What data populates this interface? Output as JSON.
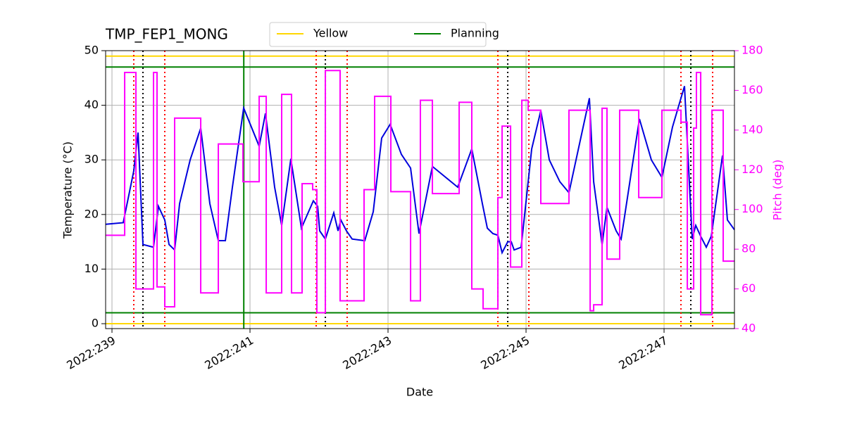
{
  "chart_data": {
    "type": "line",
    "title": "TMP_FEP1_MONG",
    "xlabel": "Date",
    "ylabel": "Temperature (°C)",
    "y2label": "Pitch (deg)",
    "xlim": [
      238.908,
      248.02
    ],
    "ylim": [
      -0.9,
      50
    ],
    "y2lim": [
      40,
      180
    ],
    "xticks": [
      {
        "value": 239,
        "label": "2022:239"
      },
      {
        "value": 241,
        "label": "2022:241"
      },
      {
        "value": 243,
        "label": "2022:243"
      },
      {
        "value": 245,
        "label": "2022:245"
      },
      {
        "value": 247,
        "label": "2022:247"
      }
    ],
    "yticks": [
      0,
      10,
      20,
      30,
      40,
      50
    ],
    "y2ticks": [
      40,
      60,
      80,
      100,
      120,
      140,
      160,
      180
    ],
    "grid": true,
    "legend": "top",
    "series": [
      {
        "color": "#0000dd",
        "x": [
          238.908,
          239.163,
          239.316,
          239.378,
          239.449,
          239.602,
          239.673,
          239.765,
          239.827,
          239.908,
          239.98,
          240.133,
          240.286,
          240.418,
          240.541,
          240.643,
          240.745,
          240.908,
          241.133,
          241.224,
          241.357,
          241.459,
          241.592,
          241.745,
          241.918,
          241.98,
          242.01,
          242.092,
          242.214,
          242.276,
          242.316,
          242.398,
          242.48,
          242.663,
          242.786,
          242.908,
          243.031,
          243.194,
          243.327,
          243.449,
          243.643,
          244.01,
          244.214,
          244.367,
          244.439,
          244.52,
          244.592,
          244.653,
          244.735,
          244.786,
          244.827,
          244.929,
          245.082,
          245.214,
          245.337,
          245.49,
          245.622,
          245.918,
          245.98,
          246.102,
          246.173,
          246.306,
          246.378,
          246.643,
          246.816,
          246.969,
          247.122,
          247.296,
          247.408,
          247.459,
          247.531,
          247.612,
          247.684,
          247.847,
          247.918,
          248.02
        ],
        "values": [
          18.2,
          18.5,
          28,
          35,
          14.5,
          14,
          21.5,
          19,
          14.5,
          13.5,
          22,
          30,
          35.8,
          22,
          15.2,
          15.2,
          25,
          39.5,
          32.5,
          38.5,
          25,
          18,
          30.2,
          17.5,
          22.5,
          21.5,
          17,
          15.5,
          20.3,
          17,
          19,
          17,
          15.5,
          15.2,
          20.5,
          34,
          36.5,
          31,
          28.5,
          16.5,
          28.8,
          25,
          32,
          22,
          17.5,
          16.5,
          16.2,
          13,
          15,
          15,
          13.5,
          14,
          32,
          39,
          30,
          26,
          24,
          41.3,
          26,
          14.5,
          21.3,
          17,
          15.5,
          37.5,
          30,
          26.8,
          36,
          43.5,
          15.5,
          18,
          16,
          14,
          16,
          30.8,
          19,
          17.2
        ]
      },
      {
        "color": "#ff00ff",
        "axis": "y2",
        "x": [
          238.908,
          239.184,
          239.184,
          239.347,
          239.347,
          239.602,
          239.602,
          239.653,
          239.653,
          239.765,
          239.765,
          239.908,
          239.908,
          240.286,
          240.286,
          240.541,
          240.541,
          240.898,
          240.898,
          241.133,
          241.133,
          241.235,
          241.235,
          241.459,
          241.459,
          241.602,
          241.602,
          241.755,
          241.755,
          241.908,
          241.908,
          241.969,
          241.969,
          242.092,
          242.092,
          242.306,
          242.306,
          242.653,
          242.653,
          242.806,
          242.806,
          243.041,
          243.041,
          243.327,
          243.327,
          243.469,
          243.469,
          243.643,
          243.643,
          244.031,
          244.031,
          244.214,
          244.214,
          244.378,
          244.378,
          244.592,
          244.592,
          244.653,
          244.653,
          244.776,
          244.776,
          244.939,
          244.939,
          245.031,
          245.031,
          245.214,
          245.214,
          245.622,
          245.622,
          245.929,
          245.929,
          245.98,
          245.98,
          246.102,
          246.102,
          246.173,
          246.173,
          246.357,
          246.357,
          246.633,
          246.633,
          246.969,
          246.969,
          247.245,
          247.245,
          247.337,
          247.337,
          247.429,
          247.429,
          247.469,
          247.469,
          247.531,
          247.531,
          247.694,
          247.694,
          247.857,
          247.857,
          248.02
        ],
        "values": [
          87,
          87,
          169,
          169,
          60,
          60,
          169,
          169,
          61,
          61,
          51,
          51,
          146,
          146,
          58,
          58,
          133,
          133,
          114,
          114,
          157,
          157,
          58,
          58,
          158,
          158,
          58,
          58,
          113,
          113,
          110,
          110,
          48,
          48,
          170,
          170,
          54,
          54,
          110,
          110,
          157,
          157,
          109,
          109,
          54,
          54,
          155,
          155,
          108,
          108,
          154,
          154,
          60,
          60,
          50,
          50,
          106,
          106,
          142,
          142,
          71,
          71,
          155,
          155,
          150,
          150,
          103,
          103,
          150,
          150,
          49,
          49,
          52,
          52,
          151,
          151,
          75,
          75,
          150,
          150,
          106,
          106,
          150,
          150,
          144,
          144,
          60,
          60,
          141,
          141,
          169,
          169,
          47,
          47,
          150,
          150,
          74,
          74
        ]
      }
    ],
    "hlines": [
      {
        "name": "Yellow",
        "color": "#ffd700",
        "y": [
          0,
          49
        ]
      },
      {
        "name": "Planning",
        "color": "#008000",
        "y": [
          2,
          47
        ]
      }
    ],
    "vlines": [
      {
        "color": "#008000",
        "style": "solid",
        "x": [
          240.91
        ]
      },
      {
        "color": "#ff0000",
        "style": "dotted",
        "x": [
          239.316,
          239.765,
          241.959,
          242.408,
          244.592,
          245.041,
          247.245,
          247.704
        ]
      },
      {
        "color": "#000000",
        "style": "dotted",
        "x": [
          239.449,
          242.092,
          244.735,
          247.388
        ]
      }
    ]
  }
}
